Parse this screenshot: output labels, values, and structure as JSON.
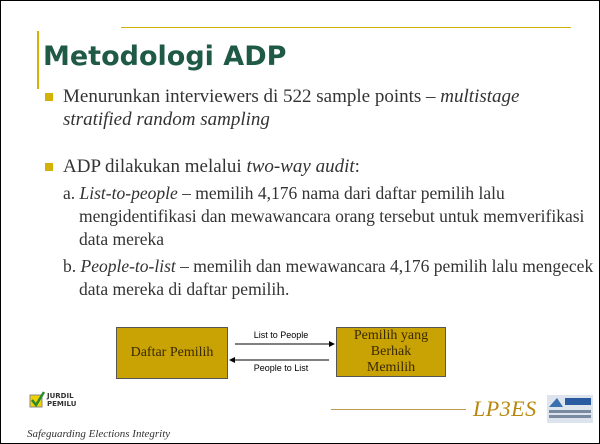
{
  "title": "Metodologi ADP",
  "bullets": [
    {
      "parts": [
        {
          "text": "Menurunkan interviewers di 522 sample points – ",
          "italic": false
        },
        {
          "text": "multistage stratified random sampling",
          "italic": true
        }
      ]
    },
    {
      "parts": [
        {
          "text": "ADP dilakukan melalui ",
          "italic": false
        },
        {
          "text": "two-way audit",
          "italic": true
        },
        {
          "text": ":",
          "italic": false
        }
      ]
    }
  ],
  "sub_items": [
    {
      "parts": [
        {
          "text": "a. ",
          "italic": false
        },
        {
          "text": "List-to-people",
          "italic": true
        },
        {
          "text": " – memilih 4,176 nama dari daftar pemilih lalu mengidentifikasi dan mewawancara orang tersebut untuk memverifikasi data mereka",
          "italic": false
        }
      ]
    },
    {
      "parts": [
        {
          "text": "b. ",
          "italic": false
        },
        {
          "text": "People-to-list",
          "italic": true
        },
        {
          "text": " – memilih dan mewawancara 4,176 pemilih lalu mengecek data mereka di daftar pemilih.",
          "italic": false
        }
      ]
    }
  ],
  "diagram": {
    "left_box": "Daftar Pemilih",
    "right_box": "Pemilih yang Berhak Memilih",
    "arrow_right": "List to People",
    "arrow_left": "People to List"
  },
  "footer": {
    "left_logo": "JURDIL PEMILU",
    "tagline": "Safeguarding Elections Integrity",
    "right_logo": "LP3ES"
  }
}
